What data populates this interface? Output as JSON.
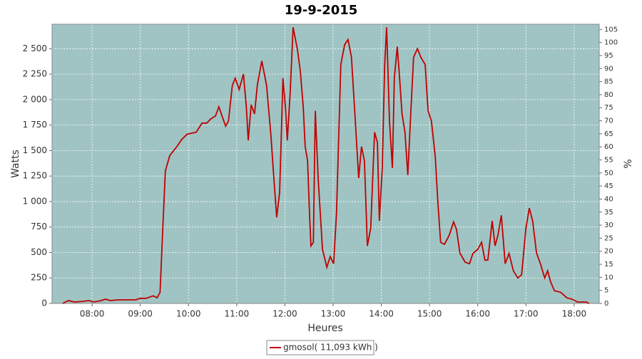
{
  "chart_data": {
    "type": "line",
    "title": "19-9-2015",
    "x_label": "Heures",
    "y_label": "Watts",
    "y2_label": "%",
    "x": [
      7.39,
      7.51,
      7.63,
      7.81,
      7.93,
      8.04,
      8.19,
      8.28,
      8.38,
      8.53,
      8.9,
      9.0,
      9.12,
      9.27,
      9.35,
      9.41,
      9.46,
      9.52,
      9.61,
      9.76,
      9.86,
      9.97,
      10.16,
      10.28,
      10.38,
      10.46,
      10.56,
      10.63,
      10.71,
      10.77,
      10.83,
      10.91,
      10.97,
      11.05,
      11.14,
      11.2,
      11.24,
      11.3,
      11.37,
      11.43,
      11.52,
      11.62,
      11.71,
      11.77,
      11.83,
      11.89,
      11.96,
      12.01,
      12.05,
      12.11,
      12.17,
      12.26,
      12.32,
      12.38,
      12.42,
      12.47,
      12.51,
      12.54,
      12.59,
      12.63,
      12.69,
      12.78,
      12.87,
      12.94,
      13.01,
      13.07,
      13.16,
      13.24,
      13.31,
      13.38,
      13.46,
      13.53,
      13.59,
      13.65,
      13.71,
      13.78,
      13.86,
      13.92,
      13.96,
      14.02,
      14.07,
      14.11,
      14.17,
      14.23,
      14.27,
      14.33,
      14.38,
      14.43,
      14.49,
      14.55,
      14.61,
      14.67,
      14.75,
      14.82,
      14.91,
      14.97,
      15.04,
      15.12,
      15.17,
      15.23,
      15.31,
      15.41,
      15.5,
      15.56,
      15.63,
      15.74,
      15.83,
      15.9,
      16.0,
      16.08,
      16.15,
      16.21,
      16.3,
      16.36,
      16.42,
      16.49,
      16.57,
      16.65,
      16.74,
      16.83,
      16.91,
      17.0,
      17.07,
      17.14,
      17.22,
      17.3,
      17.39,
      17.45,
      17.51,
      17.59,
      17.72,
      17.85,
      17.97,
      18.07,
      18.25,
      18.31
    ],
    "series": [
      {
        "name": "gmosol( 11,093 kWh )",
        "color": "#c00000",
        "values": [
          0,
          28,
          14,
          20,
          28,
          14,
          28,
          42,
          28,
          35,
          35,
          50,
          50,
          75,
          55,
          110,
          670,
          1300,
          1450,
          1540,
          1610,
          1660,
          1680,
          1770,
          1770,
          1810,
          1840,
          1930,
          1820,
          1740,
          1790,
          2140,
          2210,
          2100,
          2250,
          1930,
          1600,
          1950,
          1860,
          2150,
          2380,
          2140,
          1650,
          1230,
          845,
          1090,
          2210,
          1930,
          1600,
          2070,
          2710,
          2490,
          2280,
          1930,
          1540,
          1400,
          880,
          565,
          600,
          1890,
          1230,
          530,
          355,
          460,
          390,
          880,
          2345,
          2540,
          2590,
          2415,
          1790,
          1230,
          1540,
          1400,
          565,
          740,
          1680,
          1580,
          810,
          1330,
          2345,
          2710,
          1790,
          1330,
          2210,
          2520,
          2210,
          1860,
          1680,
          1260,
          1860,
          2415,
          2500,
          2415,
          2345,
          1890,
          1790,
          1440,
          1020,
          600,
          580,
          670,
          800,
          725,
          495,
          405,
          390,
          490,
          530,
          600,
          425,
          425,
          810,
          565,
          670,
          865,
          390,
          490,
          320,
          250,
          280,
          740,
          935,
          810,
          495,
          390,
          250,
          320,
          215,
          125,
          110,
          55,
          40,
          14,
          14,
          0
        ]
      }
    ],
    "xlim": [
      7.17,
      18.52
    ],
    "xticks": [
      {
        "value": 8,
        "label": "08:00"
      },
      {
        "value": 9,
        "label": "09:00"
      },
      {
        "value": 10,
        "label": "10:00"
      },
      {
        "value": 11,
        "label": "11:00"
      },
      {
        "value": 12,
        "label": "12:00"
      },
      {
        "value": 13,
        "label": "13:00"
      },
      {
        "value": 14,
        "label": "14:00"
      },
      {
        "value": 15,
        "label": "15:00"
      },
      {
        "value": 16,
        "label": "16:00"
      },
      {
        "value": 17,
        "label": "17:00"
      },
      {
        "value": 18,
        "label": "18:00"
      }
    ],
    "ylim": [
      0,
      2740
    ],
    "yticks": [
      0,
      250,
      500,
      750,
      {
        "value": 1000,
        "label": "1 000"
      },
      {
        "value": 1250,
        "label": "1 250"
      },
      {
        "value": 1500,
        "label": "1 500"
      },
      {
        "value": 1750,
        "label": "1 750"
      },
      {
        "value": 2000,
        "label": "2 000"
      },
      {
        "value": 2250,
        "label": "2 250"
      },
      {
        "value": 2500,
        "label": "2 500"
      }
    ],
    "y2lim": [
      0,
      107
    ],
    "y2ticks": [
      0,
      5,
      10,
      15,
      20,
      25,
      30,
      35,
      40,
      45,
      50,
      55,
      60,
      65,
      70,
      75,
      80,
      85,
      90,
      95,
      100,
      105
    ],
    "grid": true,
    "legend": "bottom",
    "background": "#a0c4c4"
  }
}
